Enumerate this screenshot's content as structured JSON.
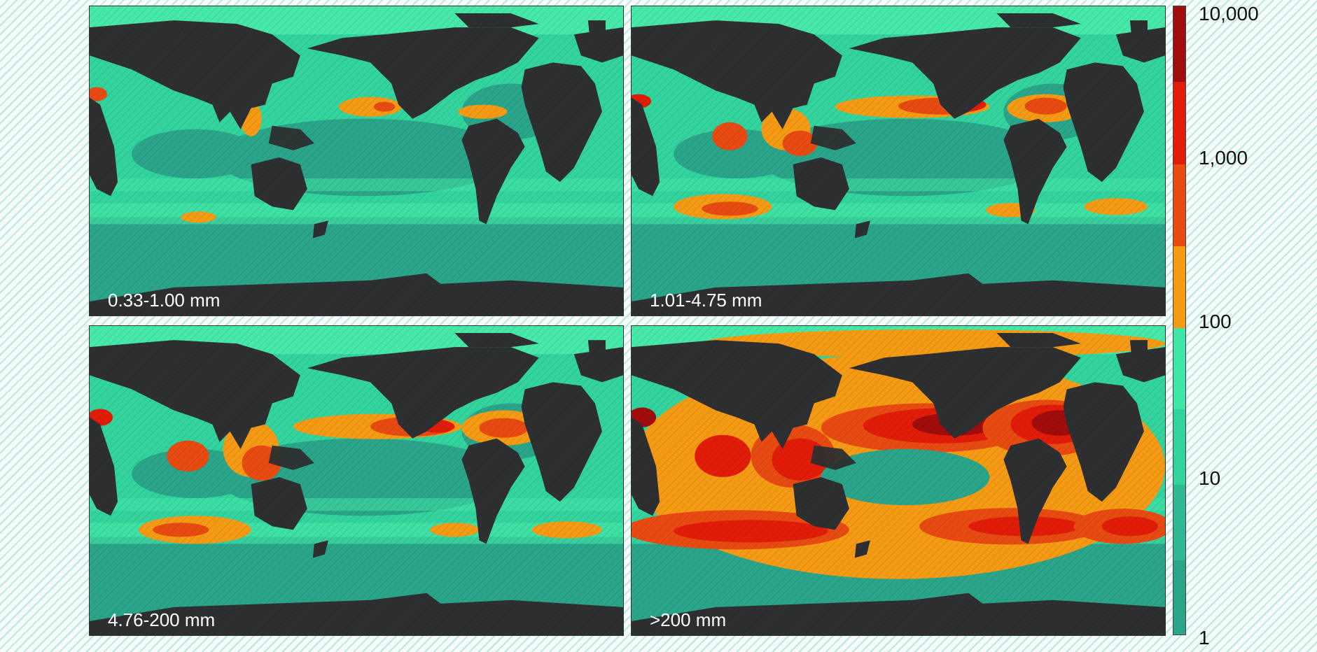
{
  "panels": [
    {
      "label": "0.33-1.00 mm"
    },
    {
      "label": "1.01-4.75 mm"
    },
    {
      "label": "4.76-200 mm"
    },
    {
      "label": ">200 mm"
    }
  ],
  "colorbar": {
    "ticks": [
      "10,000",
      "1,000",
      "100",
      "10",
      "1"
    ],
    "colors_top_to_bottom": [
      "#a10c0c",
      "#e11d0a",
      "#e84b12",
      "#f59a14",
      "#3fe6a6",
      "#33d39e",
      "#2eb994",
      "#2aa58a"
    ]
  },
  "map_colors": {
    "land": "#2d2f30",
    "ocean_low": "#2aa58a",
    "ocean_mid": "#33d39e",
    "ocean_high": "#46e9a8",
    "conc_100": "#f59a14",
    "conc_300": "#e84b12",
    "conc_1000": "#e11d0a",
    "conc_3000": "#a10c0c"
  }
}
